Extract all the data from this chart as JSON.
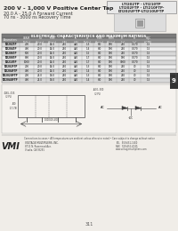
{
  "bg_color": "#f0ede8",
  "title_line1": "200 V - 1,000 V Positive Center Tap",
  "title_line2": "20.0 A - 25.0 A Forward Current",
  "title_line3": "70 ns - 3000 ns Recovery Time",
  "part_numbers": [
    "LTI202TP - LTI210TP",
    "LTI202FTP - LTI210FTP-",
    "LTI202UFTP-LTI210UFTP"
  ],
  "table_header": "ELECTRICAL CHARACTERISTICS AND MAXIMUM RATINGS",
  "table_cols": [
    "Parameters",
    "Working\nPeak Reverse\nVoltage",
    "Average\nRectified\nCurrent\n80°C\nAmb.\n(Amperes)",
    "Repetitive\nPeak\nCurrent\n60 Hz wave\n(Amp)",
    "Forward\nVoltage",
    "1 Cycle\nSurge\nForward\nPeak Amp\n(Amp)",
    "Repetitive\nPeak\nForward\n(Amps)",
    "Standard\nRecovery\nTime's",
    "Thermal\nResist"
  ],
  "table_sub_cols": [
    "Volts",
    "Amps",
    "Amps",
    "pA",
    "pA",
    "Volts",
    "Amps",
    "Amps",
    "Amps",
    "us",
    "TJ-C/W"
  ],
  "rows": [
    [
      "LTI202TP",
      "200",
      "20.0",
      "14.0",
      "210",
      "420",
      "1.3",
      "8.0",
      "180",
      "250",
      "0.070",
      "1.5"
    ],
    [
      "LTI204TP",
      "400",
      "20.0",
      "14.0",
      "210",
      "420",
      "1.4",
      "8.0",
      "180",
      "250",
      "0.070",
      "1.5"
    ],
    [
      "LTI206TP",
      "600",
      "20.0",
      "14.0",
      "210",
      "420",
      "1.5",
      "8.0",
      "180",
      "250",
      "0.070",
      "1.5"
    ],
    [
      "LTI208TP",
      "800",
      "20.0",
      "14.0",
      "210",
      "420",
      "1.7",
      "8.0",
      "180",
      "180",
      "0.070",
      "1.5"
    ],
    [
      "LTI210TP",
      "1000",
      "20.0",
      "14.0",
      "210",
      "420",
      "1.7",
      "8.0",
      "180",
      "3000",
      "0.070",
      "1.5"
    ],
    [
      "LTI202FTP",
      "200",
      "20.0",
      "14.0",
      "210",
      "420",
      "1.3",
      "8.0",
      "180",
      "250",
      "70",
      "1.5"
    ],
    [
      "LTI204FTP",
      "400",
      "20.0",
      "14.0",
      "210",
      "420",
      "1.4",
      "8.0",
      "180",
      "250",
      "70",
      "1.5"
    ],
    [
      "LTI202UFTP",
      "200",
      "25.0",
      "16.0",
      "210",
      "420",
      "1.3",
      "8.0",
      "180",
      "250",
      "70",
      "1.5"
    ],
    [
      "LTI204UFTP",
      "400",
      "25.0",
      "16.0",
      "210",
      "420",
      "1.4",
      "8.0",
      "180",
      "250",
      "70",
      "1.5"
    ]
  ],
  "footer_note": "Connections to cases • All temperatures are ambient unless otherwise noted • Case subject to change without notice",
  "company_name": "VOLTAGE MULTIPLIERS, INC.",
  "company_addr": "8711 N. Rosemead Ave.",
  "company_city": "Visalia, CA 93291",
  "tel": "559-651-1400",
  "fax": "559-651-6745",
  "web": "www.voltagemultipliers.com",
  "page_num": "311",
  "tab_label": "9",
  "header_color": "#555555",
  "table_header_bg": "#7a7a7a",
  "table_header_fg": "#ffffff",
  "row_alt_color": "#d8d8d8",
  "row_color": "#eeeeee"
}
